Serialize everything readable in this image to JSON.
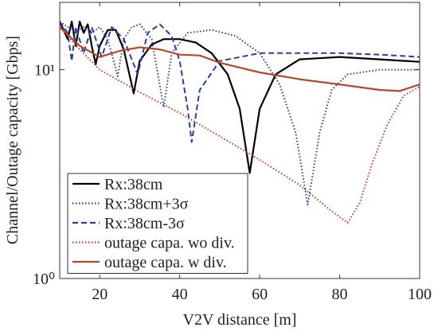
{
  "chart_data": {
    "type": "line",
    "xlabel": "V2V distance [m]",
    "ylabel": "Channel/Outage capacity [Gbps]",
    "xlim": [
      10,
      100
    ],
    "xticks": [
      20,
      40,
      60,
      80,
      100
    ],
    "ylim": [
      1,
      21
    ],
    "yscale": "log",
    "yticks": [
      {
        "value": 1,
        "label": "10⁰"
      },
      {
        "value": 10,
        "label": "10¹"
      }
    ],
    "legend": "lower left",
    "series": [
      {
        "name": "Rx:38cm",
        "color": "#000000",
        "dash": "solid",
        "x": [
          10,
          12,
          13,
          14,
          15,
          16,
          17,
          18,
          19,
          20,
          22,
          24,
          26,
          28.5,
          30,
          33,
          36,
          40,
          44,
          48,
          52,
          55,
          57.5,
          60,
          64,
          70,
          80,
          90,
          100
        ],
        "values": [
          17,
          14,
          17,
          13,
          17,
          15,
          16.5,
          13,
          10.6,
          13,
          15.5,
          15.5,
          12.5,
          7.7,
          11,
          13.2,
          14,
          14,
          13.5,
          12,
          9.5,
          6.5,
          3.2,
          6.5,
          9.5,
          11.2,
          11.5,
          11.2,
          10.9
        ]
      },
      {
        "name": "Rx:38cm+3σ",
        "color": "#2b3f9e",
        "dash": "dotted",
        "x": [
          10,
          12,
          14,
          16,
          18,
          20,
          22,
          24.5,
          26,
          28,
          30,
          33,
          36,
          38,
          42,
          48,
          54,
          60,
          65,
          69,
          72,
          75,
          78,
          82,
          90,
          100
        ],
        "values": [
          17,
          16,
          15,
          16,
          15,
          16,
          14,
          9.3,
          14,
          16,
          16.5,
          14,
          6.6,
          12,
          15,
          15.5,
          14.5,
          12,
          8.5,
          5,
          2.26,
          5,
          8,
          9.5,
          10,
          10
        ]
      },
      {
        "name": "Rx:38cm-3σ",
        "color": "#2b3f9e",
        "dash": "dashed",
        "x": [
          10,
          12,
          13,
          14,
          16,
          18,
          20.5,
          23,
          26,
          29.5,
          32,
          35,
          38,
          40,
          42,
          43,
          45,
          50,
          60,
          70,
          80,
          90,
          100
        ],
        "values": [
          17,
          15,
          11,
          16,
          12,
          16,
          11.5,
          16,
          14,
          9.5,
          15,
          16.5,
          14.5,
          11,
          6.5,
          4.5,
          8,
          11,
          12,
          12,
          12,
          11.8,
          11.5
        ]
      },
      {
        "name": "outage capa. wo div.",
        "color": "#c0392b",
        "dash": "dotted",
        "x": [
          10,
          15,
          20,
          30,
          40,
          50,
          60,
          70,
          78,
          82,
          85,
          88,
          92,
          96,
          100
        ],
        "values": [
          16,
          12.5,
          10,
          7.8,
          6.2,
          4.8,
          3.7,
          2.8,
          2.1,
          1.85,
          2.3,
          3.5,
          5.5,
          7.5,
          8.3
        ]
      },
      {
        "name": "outage capa. w div.",
        "color": "#b5472f",
        "dash": "solid",
        "x": [
          10,
          15,
          20,
          25,
          30,
          35,
          40,
          45,
          50,
          60,
          70,
          80,
          90,
          95,
          100
        ],
        "values": [
          16,
          13,
          11.5,
          12.3,
          12.8,
          12.5,
          11.8,
          11.7,
          10.8,
          9.7,
          9,
          8.5,
          8,
          7.9,
          8.5
        ]
      }
    ]
  }
}
